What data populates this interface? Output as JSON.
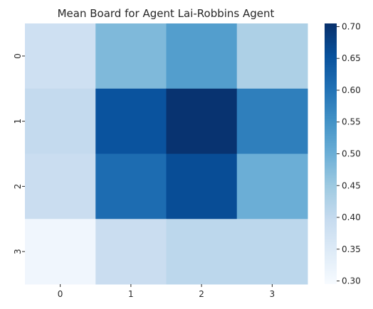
{
  "chart_data": {
    "type": "heatmap",
    "title": "Mean Board for Agent Lai-Robbins Agent",
    "xlabel": "",
    "ylabel": "",
    "x_categories": [
      "0",
      "1",
      "2",
      "3"
    ],
    "y_categories": [
      "0",
      "1",
      "2",
      "3"
    ],
    "values": [
      [
        0.38,
        0.48,
        0.53,
        0.43
      ],
      [
        0.4,
        0.65,
        0.7,
        0.58
      ],
      [
        0.39,
        0.61,
        0.66,
        0.5
      ],
      [
        0.31,
        0.39,
        0.41,
        0.41
      ]
    ],
    "colorbar": {
      "min": 0.295,
      "max": 0.705,
      "ticks": [
        "0.30",
        "0.35",
        "0.40",
        "0.45",
        "0.50",
        "0.55",
        "0.60",
        "0.65",
        "0.70"
      ],
      "colormap": "Blues"
    },
    "grid": false,
    "legend": "colorbar-right"
  }
}
